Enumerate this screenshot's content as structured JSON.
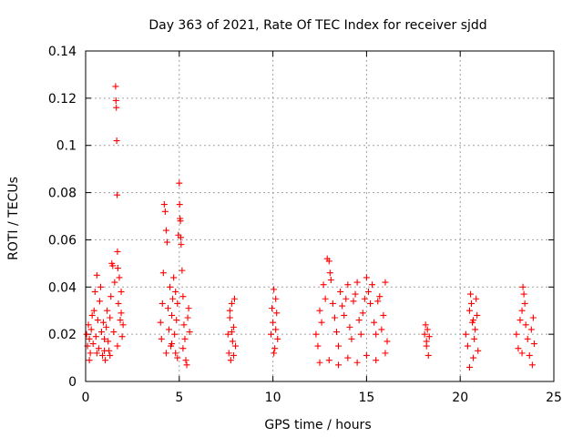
{
  "chart_data": {
    "type": "scatter",
    "title": "Day 363 of 2021, Rate Of TEC Index for receiver sjdd",
    "xlabel": "GPS time / hours",
    "ylabel": "ROTI / TECUs",
    "xlim": [
      0,
      25
    ],
    "ylim": [
      0,
      0.14
    ],
    "xticks": [
      0,
      5,
      10,
      15,
      20,
      25
    ],
    "xtick_labels": [
      "0",
      "5",
      "10",
      "15",
      "20",
      "25"
    ],
    "yticks": [
      0,
      0.02,
      0.04,
      0.06,
      0.08,
      0.1,
      0.12,
      0.14
    ],
    "ytick_labels": [
      "0",
      "0.02",
      "0.04",
      "0.06",
      "0.08",
      "0.1",
      "0.12",
      "0.14"
    ],
    "grid": true,
    "marker": "plus",
    "color": "#ff0000",
    "series": [
      {
        "name": "ROTI",
        "points": [
          [
            0.05,
            0.02
          ],
          [
            0.1,
            0.015
          ],
          [
            0.15,
            0.024
          ],
          [
            0.2,
            0.018
          ],
          [
            0.25,
            0.012
          ],
          [
            0.3,
            0.022
          ],
          [
            0.35,
            0.028
          ],
          [
            0.4,
            0.016
          ],
          [
            0.45,
            0.03
          ],
          [
            0.5,
            0.038
          ],
          [
            0.55,
            0.019
          ],
          [
            0.6,
            0.045
          ],
          [
            0.65,
            0.026
          ],
          [
            0.7,
            0.014
          ],
          [
            0.75,
            0.034
          ],
          [
            0.8,
            0.04
          ],
          [
            0.85,
            0.021
          ],
          [
            0.9,
            0.011
          ],
          [
            0.95,
            0.025
          ],
          [
            1.0,
            0.018
          ],
          [
            1.05,
            0.009
          ],
          [
            1.1,
            0.023
          ],
          [
            1.15,
            0.03
          ],
          [
            1.2,
            0.017
          ],
          [
            1.25,
            0.013
          ],
          [
            1.3,
            0.027
          ],
          [
            1.35,
            0.036
          ],
          [
            1.4,
            0.05
          ],
          [
            1.45,
            0.049
          ],
          [
            1.5,
            0.021
          ],
          [
            1.55,
            0.042
          ],
          [
            1.6,
            0.125
          ],
          [
            1.62,
            0.119
          ],
          [
            1.64,
            0.116
          ],
          [
            1.66,
            0.102
          ],
          [
            1.68,
            0.079
          ],
          [
            1.7,
            0.055
          ],
          [
            1.72,
            0.048
          ],
          [
            1.75,
            0.033
          ],
          [
            1.8,
            0.044
          ],
          [
            1.85,
            0.026
          ],
          [
            1.9,
            0.038
          ],
          [
            1.95,
            0.019
          ],
          [
            2.0,
            0.024
          ],
          [
            0.2,
            0.009
          ],
          [
            0.6,
            0.012
          ],
          [
            1.0,
            0.013
          ],
          [
            1.3,
            0.011
          ],
          [
            1.7,
            0.015
          ],
          [
            1.9,
            0.029
          ],
          [
            4.0,
            0.025
          ],
          [
            4.05,
            0.018
          ],
          [
            4.1,
            0.033
          ],
          [
            4.15,
            0.046
          ],
          [
            4.2,
            0.075
          ],
          [
            4.25,
            0.072
          ],
          [
            4.3,
            0.064
          ],
          [
            4.35,
            0.059
          ],
          [
            4.4,
            0.031
          ],
          [
            4.45,
            0.022
          ],
          [
            4.5,
            0.04
          ],
          [
            4.55,
            0.015
          ],
          [
            4.6,
            0.028
          ],
          [
            4.65,
            0.035
          ],
          [
            4.7,
            0.044
          ],
          [
            4.75,
            0.02
          ],
          [
            4.8,
            0.012
          ],
          [
            4.85,
            0.026
          ],
          [
            4.9,
            0.033
          ],
          [
            4.95,
            0.062
          ],
          [
            5.0,
            0.084
          ],
          [
            5.02,
            0.075
          ],
          [
            5.04,
            0.069
          ],
          [
            5.06,
            0.068
          ],
          [
            5.08,
            0.061
          ],
          [
            5.1,
            0.058
          ],
          [
            5.15,
            0.047
          ],
          [
            5.2,
            0.036
          ],
          [
            5.25,
            0.024
          ],
          [
            5.3,
            0.018
          ],
          [
            5.35,
            0.009
          ],
          [
            5.4,
            0.007
          ],
          [
            5.45,
            0.027
          ],
          [
            5.5,
            0.031
          ],
          [
            5.55,
            0.021
          ],
          [
            4.3,
            0.012
          ],
          [
            4.6,
            0.016
          ],
          [
            4.9,
            0.01
          ],
          [
            5.2,
            0.014
          ],
          [
            4.8,
            0.038
          ],
          [
            7.6,
            0.02
          ],
          [
            7.65,
            0.012
          ],
          [
            7.7,
            0.027
          ],
          [
            7.75,
            0.009
          ],
          [
            7.8,
            0.033
          ],
          [
            7.85,
            0.017
          ],
          [
            7.9,
            0.023
          ],
          [
            7.95,
            0.035
          ],
          [
            8.0,
            0.015
          ],
          [
            7.7,
            0.03
          ],
          [
            7.8,
            0.021
          ],
          [
            7.9,
            0.011
          ],
          [
            9.9,
            0.02
          ],
          [
            9.95,
            0.031
          ],
          [
            10.0,
            0.025
          ],
          [
            10.05,
            0.039
          ],
          [
            10.1,
            0.014
          ],
          [
            10.15,
            0.022
          ],
          [
            10.2,
            0.029
          ],
          [
            10.25,
            0.018
          ],
          [
            10.05,
            0.012
          ],
          [
            10.15,
            0.035
          ],
          [
            12.3,
            0.02
          ],
          [
            12.4,
            0.015
          ],
          [
            12.5,
            0.03
          ],
          [
            12.6,
            0.025
          ],
          [
            12.7,
            0.041
          ],
          [
            12.8,
            0.035
          ],
          [
            12.9,
            0.052
          ],
          [
            13.0,
            0.051
          ],
          [
            13.05,
            0.046
          ],
          [
            13.1,
            0.043
          ],
          [
            13.2,
            0.033
          ],
          [
            13.3,
            0.027
          ],
          [
            13.4,
            0.021
          ],
          [
            13.5,
            0.015
          ],
          [
            13.6,
            0.038
          ],
          [
            13.7,
            0.032
          ],
          [
            13.8,
            0.028
          ],
          [
            13.9,
            0.035
          ],
          [
            14.0,
            0.041
          ],
          [
            14.1,
            0.023
          ],
          [
            14.2,
            0.018
          ],
          [
            14.3,
            0.034
          ],
          [
            14.4,
            0.037
          ],
          [
            14.5,
            0.042
          ],
          [
            14.6,
            0.026
          ],
          [
            14.7,
            0.02
          ],
          [
            14.8,
            0.029
          ],
          [
            14.9,
            0.035
          ],
          [
            15.0,
            0.044
          ],
          [
            15.1,
            0.038
          ],
          [
            15.2,
            0.033
          ],
          [
            15.3,
            0.041
          ],
          [
            15.4,
            0.025
          ],
          [
            15.5,
            0.02
          ],
          [
            15.6,
            0.034
          ],
          [
            15.7,
            0.036
          ],
          [
            15.8,
            0.022
          ],
          [
            15.9,
            0.028
          ],
          [
            16.0,
            0.042
          ],
          [
            16.1,
            0.017
          ],
          [
            12.5,
            0.008
          ],
          [
            13.0,
            0.009
          ],
          [
            13.5,
            0.007
          ],
          [
            14.0,
            0.01
          ],
          [
            14.5,
            0.008
          ],
          [
            15.0,
            0.011
          ],
          [
            15.5,
            0.009
          ],
          [
            16.0,
            0.012
          ],
          [
            18.1,
            0.02
          ],
          [
            18.15,
            0.024
          ],
          [
            18.2,
            0.015
          ],
          [
            18.25,
            0.022
          ],
          [
            18.3,
            0.011
          ],
          [
            18.35,
            0.019
          ],
          [
            18.2,
            0.017
          ],
          [
            20.3,
            0.02
          ],
          [
            20.4,
            0.015
          ],
          [
            20.5,
            0.03
          ],
          [
            20.55,
            0.037
          ],
          [
            20.6,
            0.033
          ],
          [
            20.65,
            0.025
          ],
          [
            20.7,
            0.01
          ],
          [
            20.75,
            0.018
          ],
          [
            20.8,
            0.022
          ],
          [
            20.85,
            0.035
          ],
          [
            20.9,
            0.028
          ],
          [
            20.95,
            0.013
          ],
          [
            20.5,
            0.006
          ],
          [
            20.7,
            0.026
          ],
          [
            23.0,
            0.02
          ],
          [
            23.1,
            0.014
          ],
          [
            23.2,
            0.026
          ],
          [
            23.3,
            0.03
          ],
          [
            23.35,
            0.04
          ],
          [
            23.4,
            0.037
          ],
          [
            23.45,
            0.033
          ],
          [
            23.5,
            0.024
          ],
          [
            23.6,
            0.018
          ],
          [
            23.7,
            0.011
          ],
          [
            23.8,
            0.022
          ],
          [
            23.85,
            0.007
          ],
          [
            23.9,
            0.027
          ],
          [
            23.95,
            0.016
          ],
          [
            23.3,
            0.012
          ]
        ]
      }
    ]
  }
}
